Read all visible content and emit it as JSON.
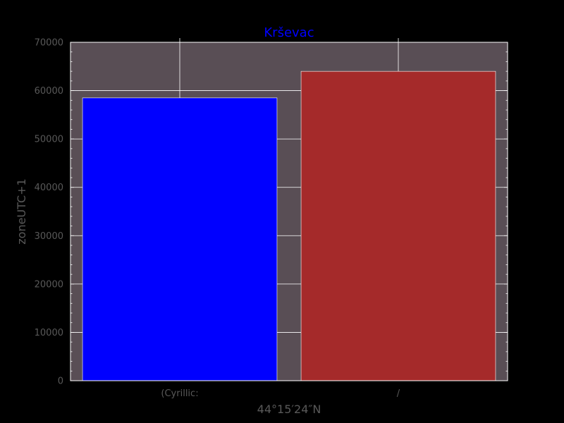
{
  "chart_data": {
    "type": "bar",
    "title": "Krševac",
    "xlabel": "44°15′24″N",
    "ylabel": "zoneUTC+1",
    "categories": [
      "(Cyrillic:",
      "/"
    ],
    "values": [
      58500,
      64000
    ],
    "ylim": [
      0,
      70000
    ],
    "yticks": [
      0,
      10000,
      20000,
      30000,
      40000,
      50000,
      60000,
      70000
    ],
    "grid": true,
    "bar_colors": [
      "#0000ff",
      "#a52a2a"
    ],
    "colors": {
      "background": "#000000",
      "plot_background": "#594e55",
      "grid": "#ffffff",
      "text": "#595959",
      "title": "#0000ff"
    }
  }
}
